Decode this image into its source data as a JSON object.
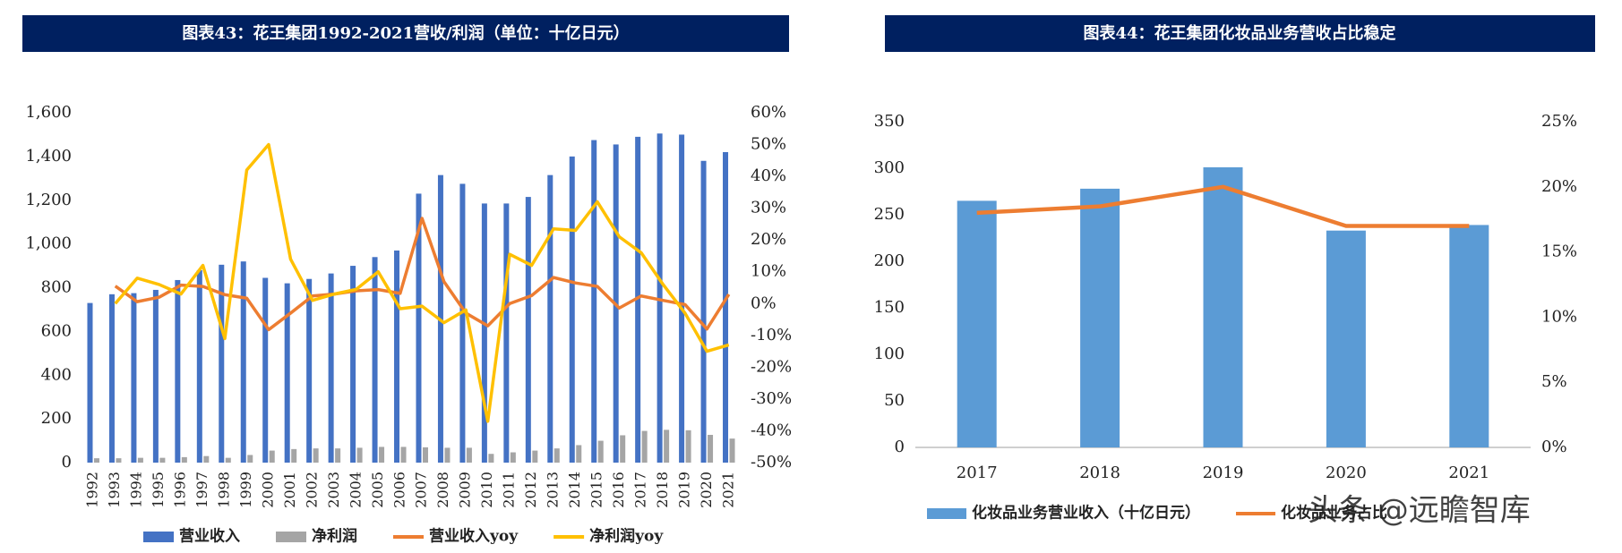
{
  "chart_data": [
    {
      "type": "combo",
      "title": "图表43：花王集团1992-2021营收/利润（单位：十亿日元）",
      "categories": [
        "1992",
        "1993",
        "1994",
        "1995",
        "1996",
        "1997",
        "1998",
        "1999",
        "2000",
        "2001",
        "2002",
        "2003",
        "2004",
        "2005",
        "2006",
        "2007",
        "2008",
        "2009",
        "2010",
        "2011",
        "2012",
        "2013",
        "2014",
        "2015",
        "2016",
        "2017",
        "2018",
        "2019",
        "2020",
        "2021"
      ],
      "series": [
        {
          "name": "营业收入",
          "type": "bar",
          "color": "#4472c4",
          "values": [
            730,
            770,
            775,
            790,
            835,
            880,
            905,
            920,
            845,
            820,
            840,
            865,
            900,
            940,
            970,
            1230,
            1315,
            1275,
            1185,
            1185,
            1215,
            1315,
            1400,
            1475,
            1455,
            1490,
            1505,
            1500,
            1380,
            1420
          ]
        },
        {
          "name": "净利润",
          "type": "bar",
          "color": "#a5a5a5",
          "values": [
            20,
            20,
            22,
            22,
            25,
            30,
            22,
            35,
            55,
            62,
            65,
            65,
            68,
            72,
            72,
            70,
            68,
            68,
            40,
            47,
            55,
            65,
            80,
            100,
            125,
            145,
            150,
            148,
            127,
            110
          ]
        },
        {
          "name": "营业收入yoy",
          "type": "line",
          "axis": "y2",
          "color": "#ed7d31",
          "values": [
            null,
            5.5,
            0.6,
            2,
            5.8,
            5.4,
            2.8,
            1.7,
            -8.2,
            -3,
            2.4,
            3,
            4,
            4.4,
            3.2,
            26.8,
            6.9,
            -3,
            -7,
            0,
            2.5,
            8.2,
            6.5,
            5.4,
            -1.4,
            2.4,
            1,
            -0.3,
            -8,
            2.9
          ]
        },
        {
          "name": "净利润yoy",
          "type": "line",
          "axis": "y2",
          "color": "#ffc000",
          "values": [
            null,
            0,
            8,
            6,
            3,
            12,
            -11,
            42,
            50,
            14,
            1,
            3,
            4.5,
            10,
            -1.6,
            -0.8,
            -6,
            -2,
            -37,
            15.5,
            12,
            23.5,
            23,
            32,
            21,
            16,
            6,
            -3,
            -15,
            -13
          ]
        }
      ],
      "ylim": [
        0,
        1600
      ],
      "yticks": [
        0,
        200,
        400,
        600,
        800,
        {
          "value": 1000,
          "label": "1,000"
        },
        {
          "value": 1200,
          "label": "1,200"
        },
        {
          "value": 1400,
          "label": "1,400"
        },
        {
          "value": 1600,
          "label": "1,600"
        }
      ],
      "y2lim": [
        -50,
        60
      ],
      "y2ticks": [
        {
          "value": -50,
          "label": "-50%"
        },
        {
          "value": -40,
          "label": "-40%"
        },
        {
          "value": -30,
          "label": "-30%"
        },
        {
          "value": -20,
          "label": "-20%"
        },
        {
          "value": -10,
          "label": "-10%"
        },
        {
          "value": 0,
          "label": "0%"
        },
        {
          "value": 10,
          "label": "10%"
        },
        {
          "value": 20,
          "label": "20%"
        },
        {
          "value": 30,
          "label": "30%"
        },
        {
          "value": 40,
          "label": "40%"
        },
        {
          "value": 50,
          "label": "50%"
        },
        {
          "value": 60,
          "label": "60%"
        }
      ],
      "grid": false,
      "legend": "bottom"
    },
    {
      "type": "combo",
      "title": "图表44：花王集团化妆品业务营收占比稳定",
      "categories": [
        "2017",
        "2018",
        "2019",
        "2020",
        "2021"
      ],
      "series": [
        {
          "name": "化妆品业务营业收入（十亿日元）",
          "type": "bar",
          "color": "#5b9bd5",
          "values": [
            265,
            278,
            301,
            233,
            239
          ]
        },
        {
          "name": "化妆品业务占比",
          "type": "line",
          "axis": "y2",
          "color": "#ed7d31",
          "values": [
            18,
            18.5,
            20,
            17,
            17
          ]
        }
      ],
      "ylim": [
        0,
        350
      ],
      "yticks": [
        0,
        50,
        100,
        150,
        200,
        250,
        300,
        350
      ],
      "y2lim": [
        0,
        25
      ],
      "y2ticks": [
        {
          "value": 0,
          "label": "0%"
        },
        {
          "value": 5,
          "label": "5%"
        },
        {
          "value": 10,
          "label": "10%"
        },
        {
          "value": 15,
          "label": "15%"
        },
        {
          "value": 20,
          "label": "20%"
        },
        {
          "value": 25,
          "label": "25%"
        }
      ],
      "grid": false,
      "legend": "bottom",
      "watermark": "头条 @远瞻智库"
    }
  ]
}
